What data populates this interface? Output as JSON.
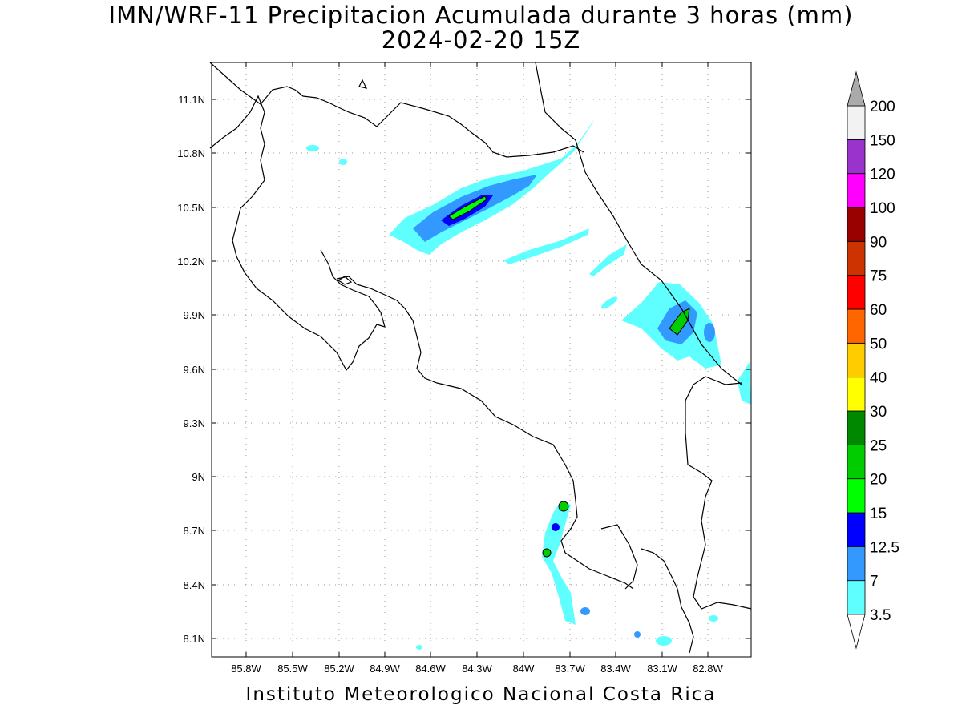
{
  "title": {
    "line1": "IMN/WRF-11 Precipitacion Acumulada durante 3 horas (mm)",
    "line2": "2024-02-20 15Z"
  },
  "footer": "Instituto Meteorologico Nacional Costa Rica",
  "map": {
    "region": "Costa Rica",
    "lon_range": [
      -86.0,
      -82.6
    ],
    "lat_range": [
      7.9,
      11.3
    ],
    "x_ticks": [
      "85.8W",
      "85.5W",
      "85.2W",
      "84.9W",
      "84.6W",
      "84.3W",
      "84W",
      "83.7W",
      "83.4W",
      "83.1W",
      "82.8W"
    ],
    "y_ticks": [
      "11.1N",
      "10.8N",
      "10.5N",
      "10.2N",
      "9.9N",
      "9.6N",
      "9.3N",
      "9N",
      "8.7N",
      "8.4N",
      "8.1N"
    ],
    "gridlines": "dotted"
  },
  "colorbar": {
    "levels": [
      "3.5",
      "7",
      "12.5",
      "15",
      "20",
      "25",
      "30",
      "40",
      "50",
      "60",
      "75",
      "90",
      "100",
      "120",
      "150",
      "200"
    ],
    "colors": [
      "#5fffff",
      "#3399ff",
      "#0000ff",
      "#00ff00",
      "#00cc00",
      "#008800",
      "#ffff00",
      "#ffcc00",
      "#ff6600",
      "#ff0000",
      "#cc3300",
      "#990000",
      "#ff00ff",
      "#9933cc",
      "#f2f2f2",
      "#aaaaaa"
    ]
  }
}
